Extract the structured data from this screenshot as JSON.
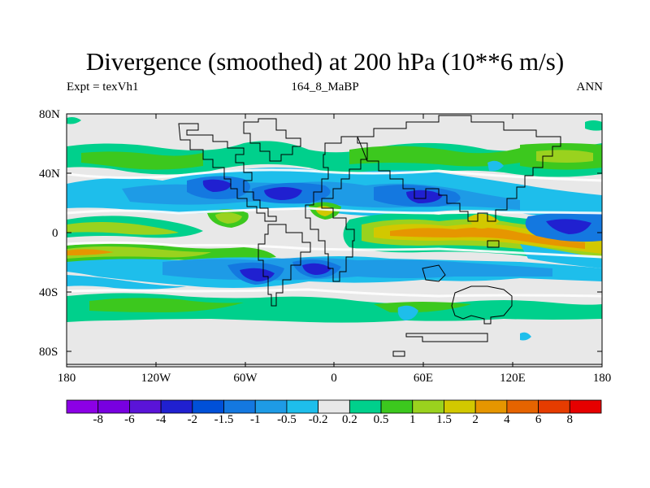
{
  "title": "Divergence (smoothed) at 200 hPa (10**6 m/s)",
  "subtitle_left": "Expt = texVh1",
  "subtitle_center": "164_8_MaBP",
  "subtitle_right": "ANN",
  "y_axis_labels": [
    "80N",
    "40N",
    "0",
    "40S",
    "80S"
  ],
  "x_axis_labels": [
    "180",
    "120W",
    "60W",
    "0",
    "60E",
    "120E",
    "180"
  ],
  "colorbar": {
    "labels": [
      "-8",
      "-6",
      "-4",
      "-2",
      "-1.5",
      "-1",
      "-0.5",
      "-0.2",
      "0.2",
      "0.5",
      "1",
      "1.5",
      "2",
      "4",
      "6",
      "8"
    ],
    "colors": [
      "#8c00e6",
      "#7800e0",
      "#5a14d8",
      "#2020d0",
      "#0050d8",
      "#1478e0",
      "#1e9be6",
      "#1ebeeb",
      "#e8e8e8",
      "#00d08c",
      "#3cc81e",
      "#9ad21e",
      "#d2c800",
      "#e69600",
      "#e66400",
      "#e63c00",
      "#e60000"
    ]
  },
  "colors": {
    "background": "#e8e8e8",
    "land_outline": "#000000"
  }
}
